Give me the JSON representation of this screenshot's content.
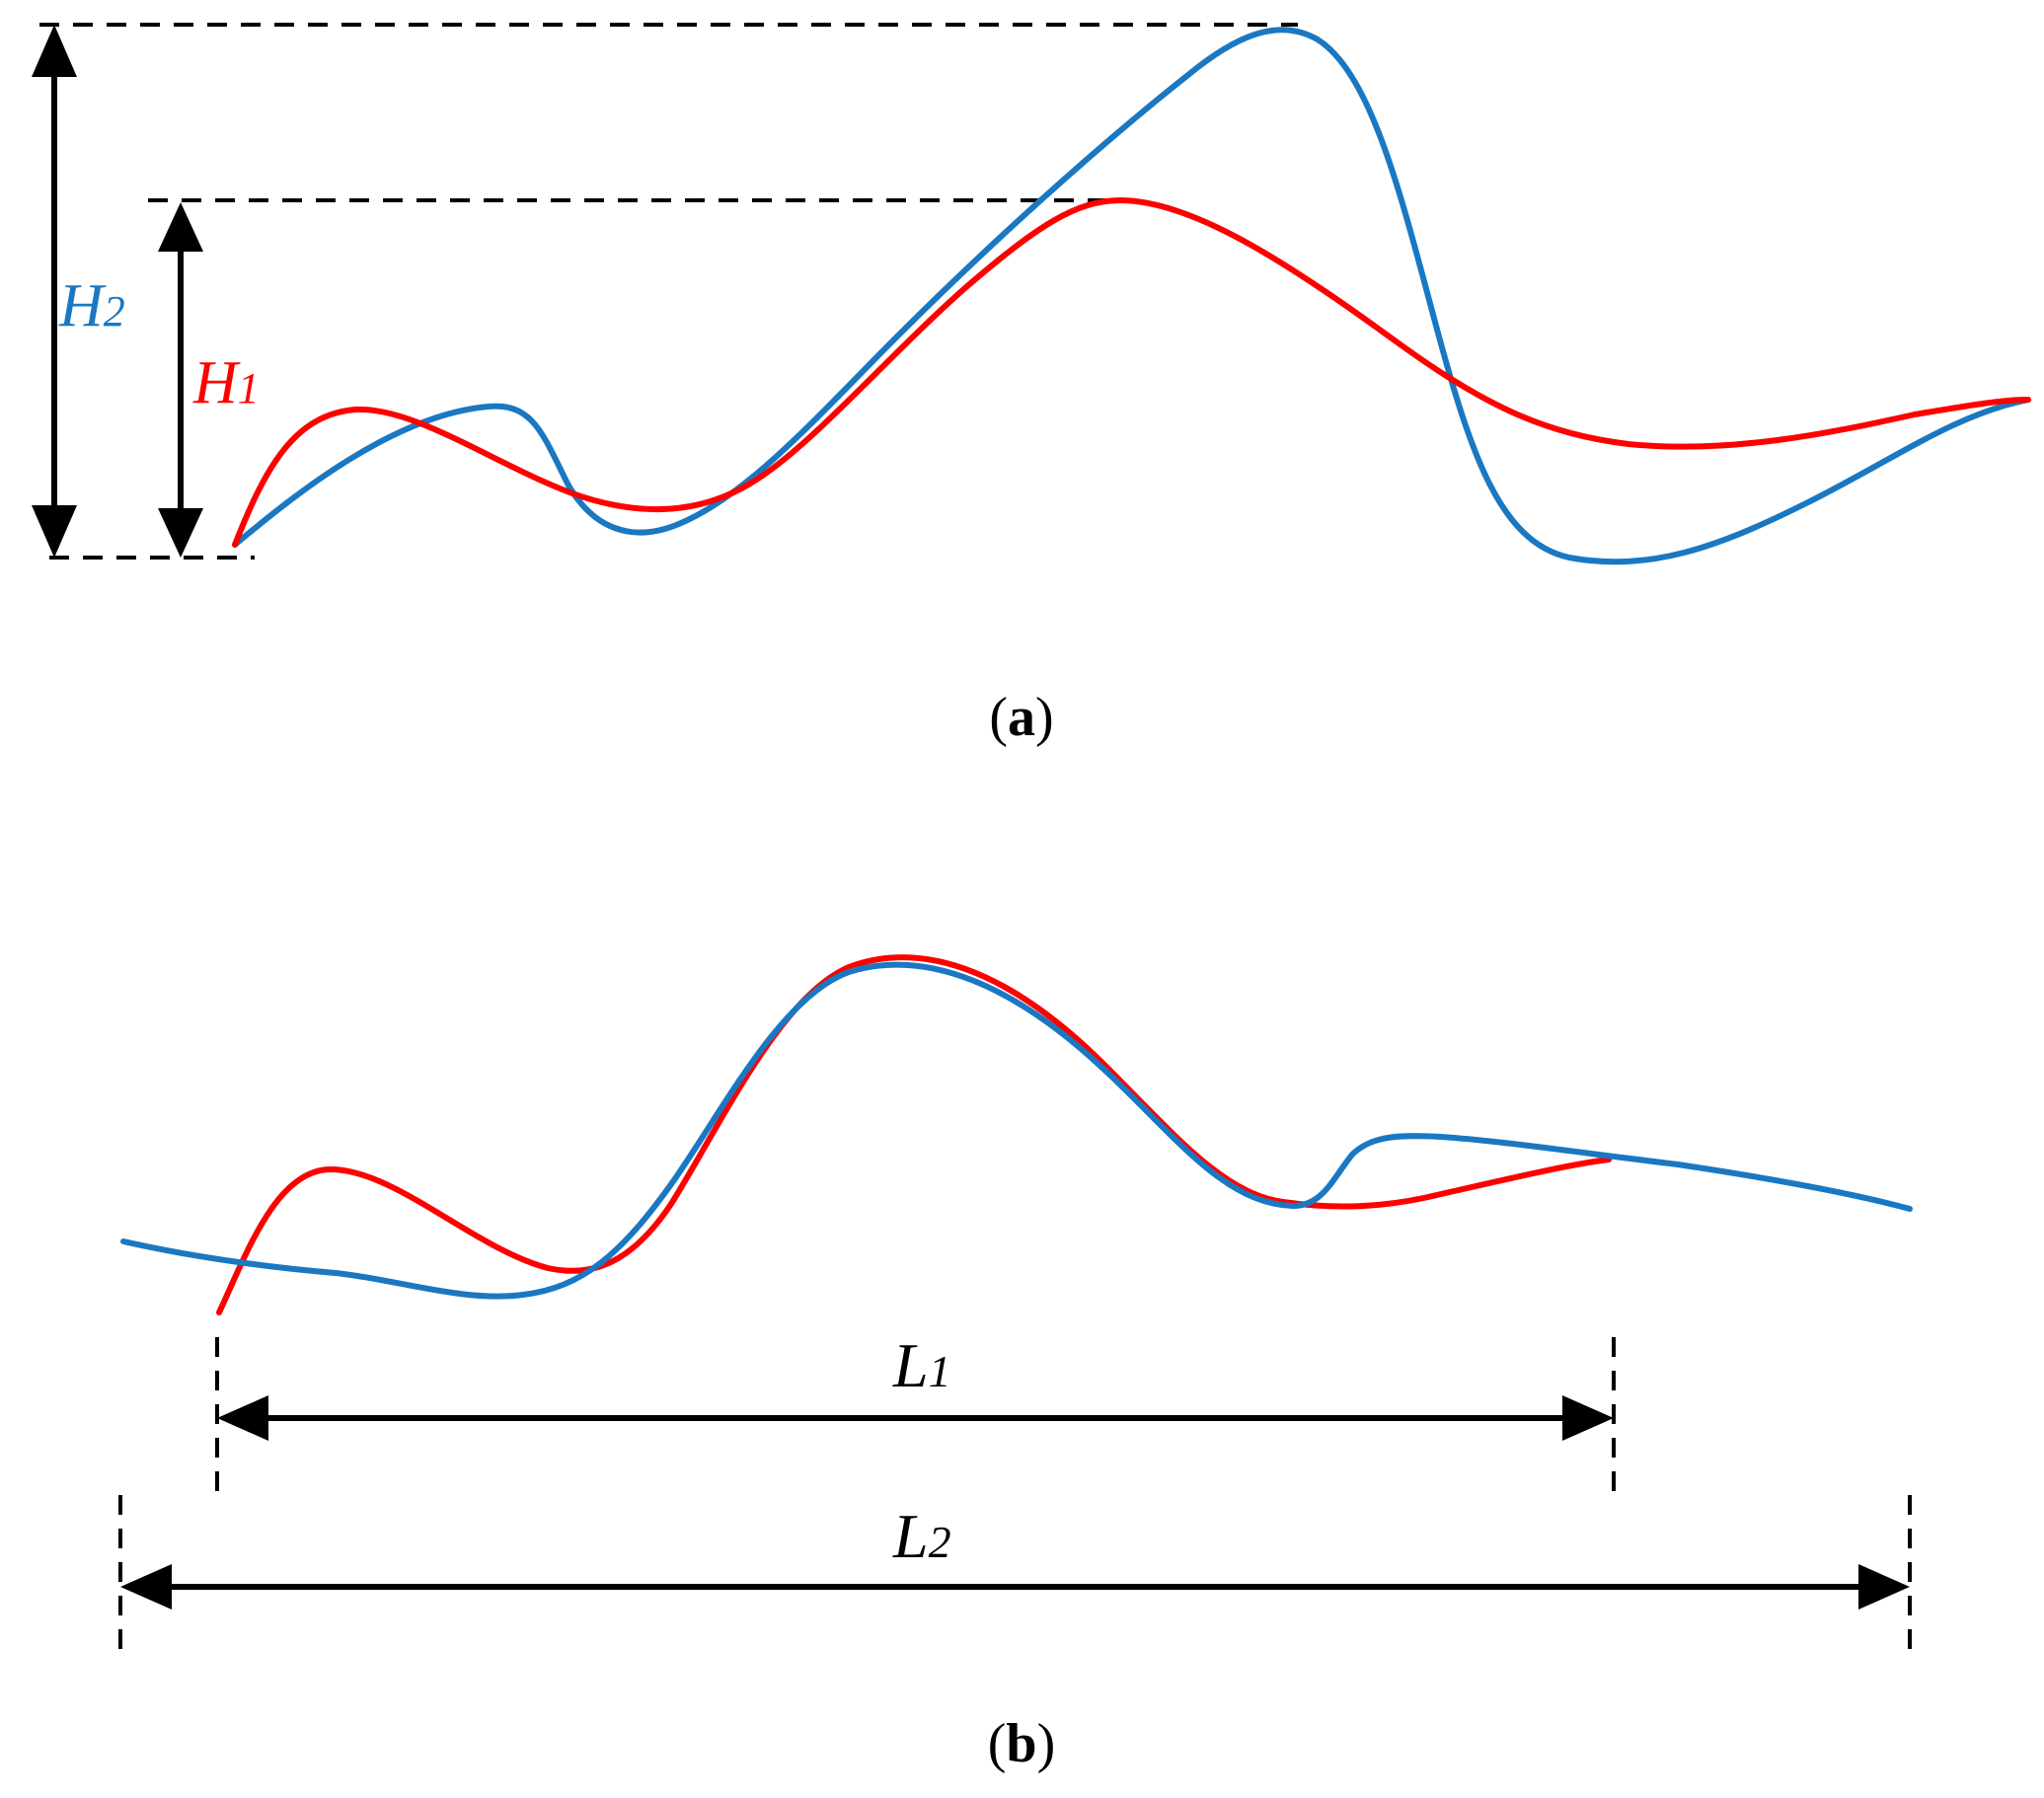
{
  "colors": {
    "series1": "#ff0000",
    "series2": "#1a78c2",
    "dimension": "#000000"
  },
  "panel_a": {
    "caption_open": "(",
    "caption_letter": "a",
    "caption_close": ")",
    "h1_label": {
      "main": "H",
      "sub": "1"
    },
    "h2_label": {
      "main": "H",
      "sub": "2"
    }
  },
  "panel_b": {
    "caption_open": "(",
    "caption_letter": "b",
    "caption_close": ")",
    "l1_label": {
      "main": "L",
      "sub": "1"
    },
    "l2_label": {
      "main": "L",
      "sub": "2"
    }
  }
}
